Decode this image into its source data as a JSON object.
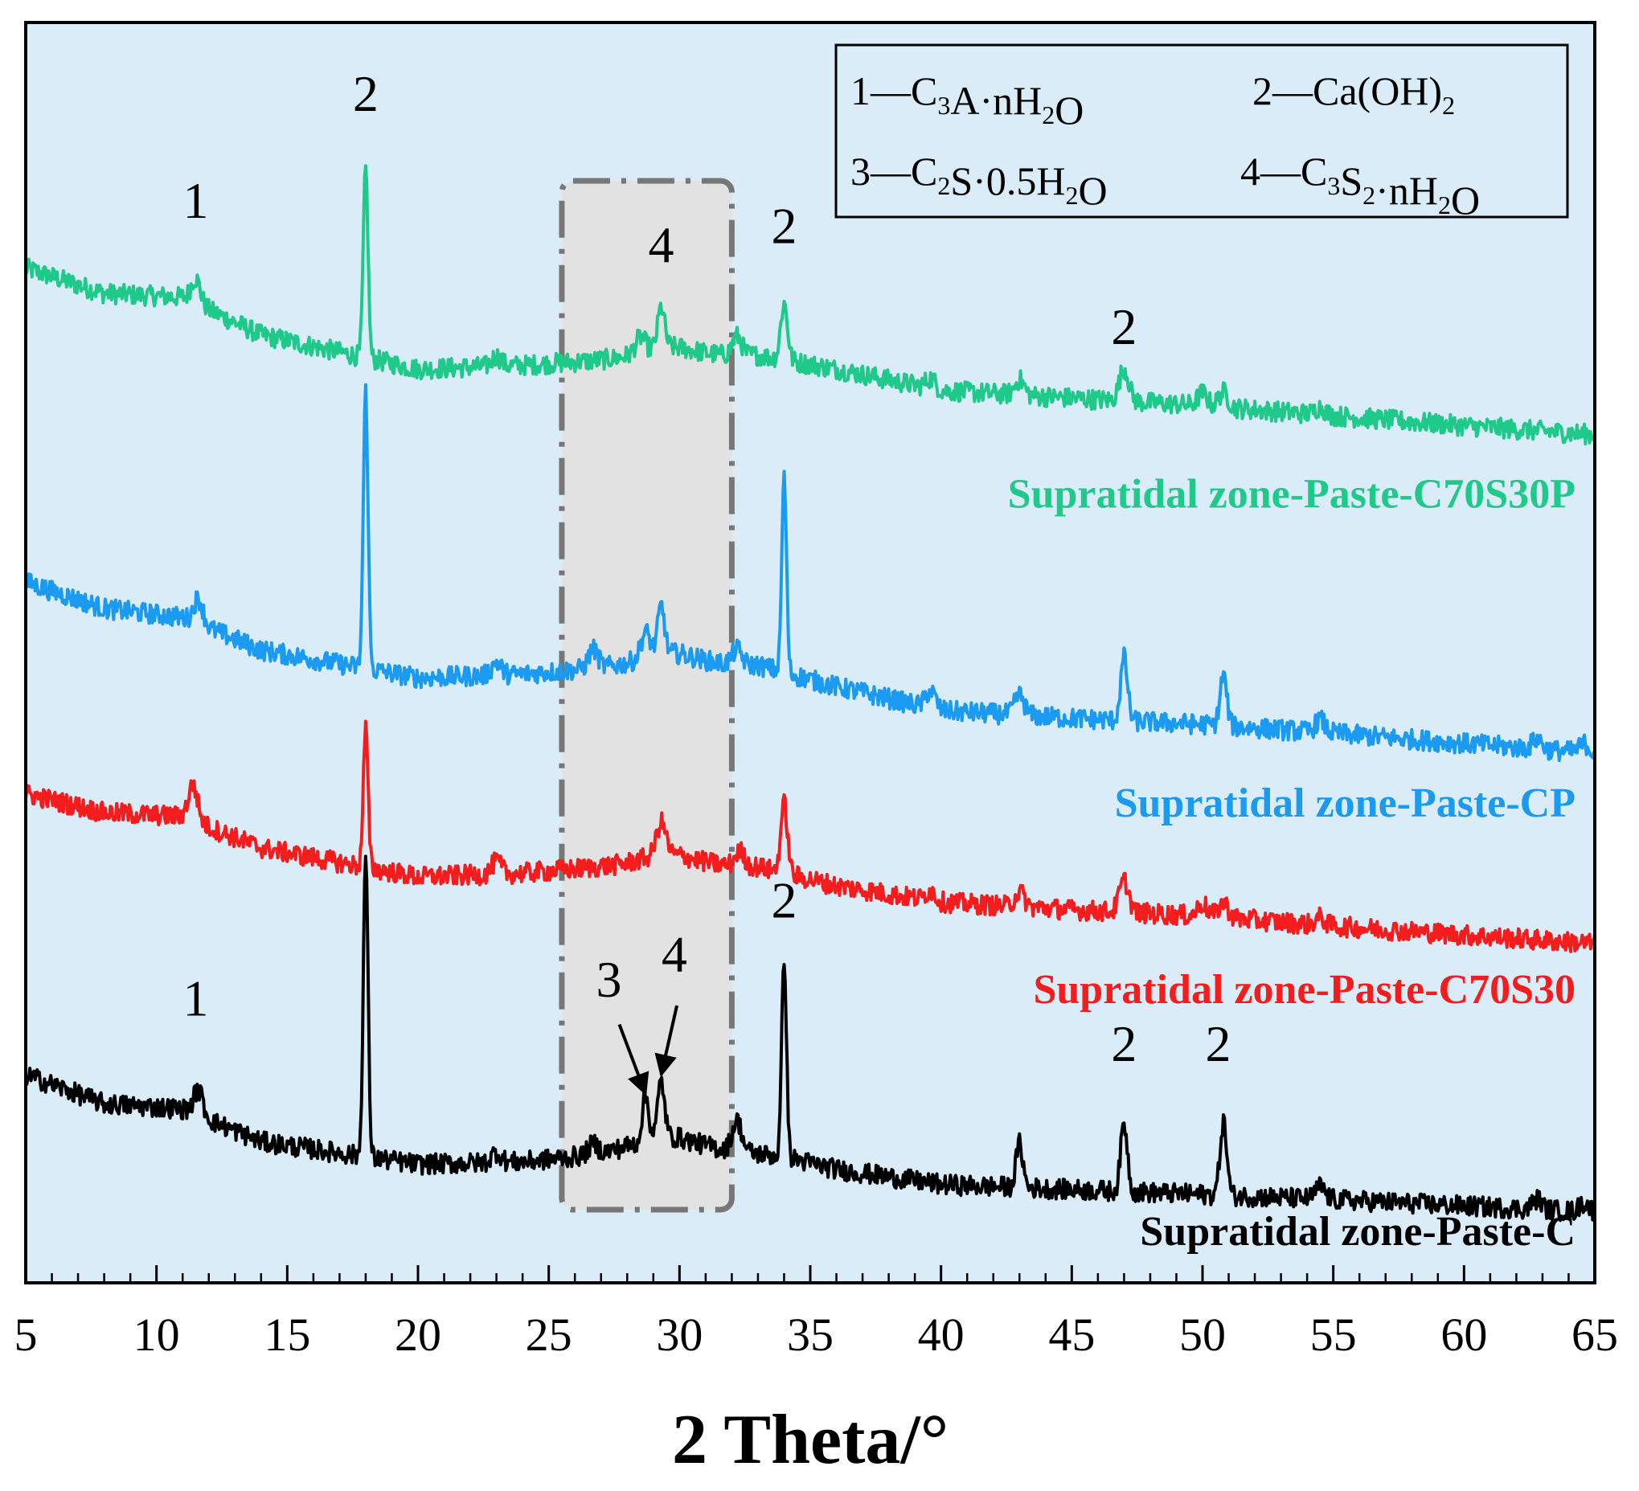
{
  "chart_data": {
    "type": "line",
    "title": "",
    "xlabel": "2 Theta/°",
    "ylabel": "",
    "xlim": [
      5,
      65
    ],
    "xticks": [
      5,
      10,
      15,
      20,
      25,
      30,
      35,
      40,
      45,
      50,
      55,
      60,
      65
    ],
    "xtick_labels": [
      "5",
      "10",
      "15",
      "20",
      "25",
      "30",
      "35",
      "40",
      "45",
      "50",
      "55",
      "60",
      "65"
    ],
    "ylim": [
      0,
      100
    ],
    "colors": {
      "background": "#d9ecf8",
      "highlight_box": "#e2e2e2",
      "highlight_border": "#777777"
    },
    "legend": {
      "placement": "top-right",
      "entries": [
        {
          "num": "1",
          "dash": "—",
          "parts": [
            [
              "C",
              false
            ],
            [
              "3",
              true
            ],
            [
              "A·nH",
              false
            ],
            [
              "2",
              true
            ],
            [
              "O",
              false
            ]
          ]
        },
        {
          "num": "2",
          "dash": "—",
          "parts": [
            [
              "Ca(OH)",
              false
            ],
            [
              "2",
              true
            ]
          ]
        },
        {
          "num": "3",
          "dash": "—",
          "parts": [
            [
              "C",
              false
            ],
            [
              "2",
              true
            ],
            [
              "S·0.5H",
              false
            ],
            [
              "2",
              true
            ],
            [
              "O",
              false
            ]
          ]
        },
        {
          "num": "4",
          "dash": "—",
          "parts": [
            [
              "C",
              false
            ],
            [
              "3",
              true
            ],
            [
              "S",
              false
            ],
            [
              "2",
              true
            ],
            [
              "·nH",
              false
            ],
            [
              "2",
              true
            ],
            [
              "O",
              false
            ]
          ]
        }
      ]
    },
    "highlight_region": {
      "x_range": [
        25.5,
        32
      ]
    },
    "series": [
      {
        "name": "Supratidal zone-Paste-C70S30P",
        "color": "#1fc98a",
        "points": [
          [
            5,
            80.5
          ],
          [
            8,
            78.5
          ],
          [
            11,
            78.2
          ],
          [
            14,
            75.2
          ],
          [
            20,
            72.5
          ],
          [
            24,
            72.8
          ],
          [
            27,
            73.2
          ],
          [
            30,
            73.5
          ],
          [
            33,
            73.6
          ],
          [
            36,
            72.5
          ],
          [
            40,
            70.8
          ],
          [
            45,
            70.2
          ],
          [
            50,
            69.6
          ],
          [
            55,
            68.8
          ],
          [
            60,
            68.0
          ],
          [
            65,
            67.3
          ]
        ],
        "peaks": [
          [
            11.5,
            2.0
          ],
          [
            18.0,
            15.0
          ],
          [
            23.0,
            0.8
          ],
          [
            28.5,
            1.2
          ],
          [
            29.3,
            3.2
          ],
          [
            32.2,
            1.5
          ],
          [
            34.0,
            4.5
          ],
          [
            39.6,
            0.8
          ],
          [
            43.0,
            1.2
          ],
          [
            47.0,
            2.6
          ],
          [
            50.0,
            1.0
          ],
          [
            50.8,
            1.2
          ],
          [
            54.5,
            0.6
          ]
        ]
      },
      {
        "name": "Supratidal zone-Paste-CP",
        "color": "#1a9af0",
        "points": [
          [
            5,
            55.6
          ],
          [
            8,
            53.5
          ],
          [
            11,
            52.8
          ],
          [
            14,
            50.2
          ],
          [
            20,
            48.0
          ],
          [
            24,
            48.3
          ],
          [
            27,
            48.8
          ],
          [
            30,
            49.2
          ],
          [
            33,
            49.0
          ],
          [
            36,
            47.3
          ],
          [
            40,
            45.4
          ],
          [
            45,
            44.8
          ],
          [
            50,
            44.3
          ],
          [
            55,
            43.6
          ],
          [
            60,
            42.8
          ],
          [
            65,
            42.0
          ]
        ],
        "peaks": [
          [
            11.6,
            2.0
          ],
          [
            18.0,
            22.0
          ],
          [
            23.0,
            1.0
          ],
          [
            26.7,
            1.5
          ],
          [
            28.7,
            2.0
          ],
          [
            29.3,
            3.8
          ],
          [
            32.2,
            1.2
          ],
          [
            34.0,
            15.5
          ],
          [
            39.6,
            1.4
          ],
          [
            43.0,
            1.6
          ],
          [
            47.0,
            5.0
          ],
          [
            50.8,
            4.0
          ],
          [
            54.5,
            1.0
          ],
          [
            62.8,
            0.8
          ],
          [
            64.6,
            0.7
          ]
        ]
      },
      {
        "name": "Supratidal zone-Paste-C70S30",
        "color": "#f41c1c",
        "points": [
          [
            5,
            38.8
          ],
          [
            8,
            37.3
          ],
          [
            11,
            37.0
          ],
          [
            14,
            34.5
          ],
          [
            20,
            32.2
          ],
          [
            24,
            32.5
          ],
          [
            27,
            33.0
          ],
          [
            30,
            33.2
          ],
          [
            33,
            33.0
          ],
          [
            36,
            31.5
          ],
          [
            40,
            30.2
          ],
          [
            45,
            29.6
          ],
          [
            50,
            29.1
          ],
          [
            55,
            28.3
          ],
          [
            60,
            27.6
          ],
          [
            65,
            26.9
          ]
        ],
        "peaks": [
          [
            11.4,
            2.8
          ],
          [
            18.0,
            11.0
          ],
          [
            23.0,
            1.0
          ],
          [
            29.3,
            2.6
          ],
          [
            32.3,
            1.2
          ],
          [
            34.0,
            5.5
          ],
          [
            39.6,
            0.8
          ],
          [
            43.0,
            1.2
          ],
          [
            47.0,
            2.5
          ],
          [
            50.0,
            1.0
          ],
          [
            50.8,
            1.2
          ],
          [
            54.5,
            0.6
          ]
        ]
      },
      {
        "name": "Supratidal zone-Paste-C",
        "color": "#000000",
        "points": [
          [
            5,
            16.5
          ],
          [
            8,
            14.2
          ],
          [
            11,
            13.8
          ],
          [
            14,
            11.2
          ],
          [
            20,
            9.4
          ],
          [
            24,
            9.6
          ],
          [
            26,
            10.0
          ],
          [
            28,
            10.6
          ],
          [
            30,
            10.8
          ],
          [
            32,
            10.5
          ],
          [
            34,
            10.0
          ],
          [
            36,
            9.0
          ],
          [
            40,
            7.8
          ],
          [
            45,
            7.4
          ],
          [
            50,
            7.0
          ],
          [
            55,
            6.6
          ],
          [
            60,
            6.1
          ],
          [
            65,
            5.6
          ]
        ],
        "peaks": [
          [
            11.6,
            2.0
          ],
          [
            18.0,
            24.0
          ],
          [
            23.0,
            0.8
          ],
          [
            26.7,
            0.8
          ],
          [
            28.7,
            3.5
          ],
          [
            29.3,
            4.5
          ],
          [
            32.2,
            2.4
          ],
          [
            34.0,
            16.0
          ],
          [
            43.0,
            3.5
          ],
          [
            47.0,
            5.4
          ],
          [
            50.8,
            5.8
          ],
          [
            54.5,
            1.0
          ],
          [
            62.8,
            0.8
          ],
          [
            64.6,
            0.7
          ]
        ]
      }
    ],
    "series_labels": [
      {
        "text": "Supratidal zone-Paste-C70S30P",
        "x": 65,
        "y": 61.5
      },
      {
        "text": "Supratidal zone-Paste-CP",
        "x": 65,
        "y": 37.0
      },
      {
        "text": "Supratidal zone-Paste-C70S30",
        "x": 65,
        "y": 22.2
      },
      {
        "text": "Supratidal zone-Paste-C",
        "x": 65,
        "y": 3.0
      }
    ],
    "peak_labels": [
      {
        "text": "1",
        "x": 11.5,
        "y": 84.5
      },
      {
        "text": "2",
        "x": 18.0,
        "y": 93.0
      },
      {
        "text": "4",
        "x": 29.3,
        "y": 81.0
      },
      {
        "text": "2",
        "x": 34.0,
        "y": 82.5
      },
      {
        "text": "2",
        "x": 47.0,
        "y": 74.5
      },
      {
        "text": "1",
        "x": 11.5,
        "y": 21.2
      },
      {
        "text": "2",
        "x": 34.0,
        "y": 29.0
      },
      {
        "text": "3",
        "x": 27.3,
        "y": 22.7
      },
      {
        "text": "4",
        "x": 29.8,
        "y": 24.7
      },
      {
        "text": "2",
        "x": 47.0,
        "y": 17.6
      },
      {
        "text": "2",
        "x": 50.6,
        "y": 17.6
      }
    ],
    "annotation_arrows": [
      {
        "from": [
          27.7,
          20.5
        ],
        "to": [
          28.7,
          15.0
        ]
      },
      {
        "from": [
          29.9,
          22.0
        ],
        "to": [
          29.3,
          16.5
        ]
      }
    ]
  }
}
